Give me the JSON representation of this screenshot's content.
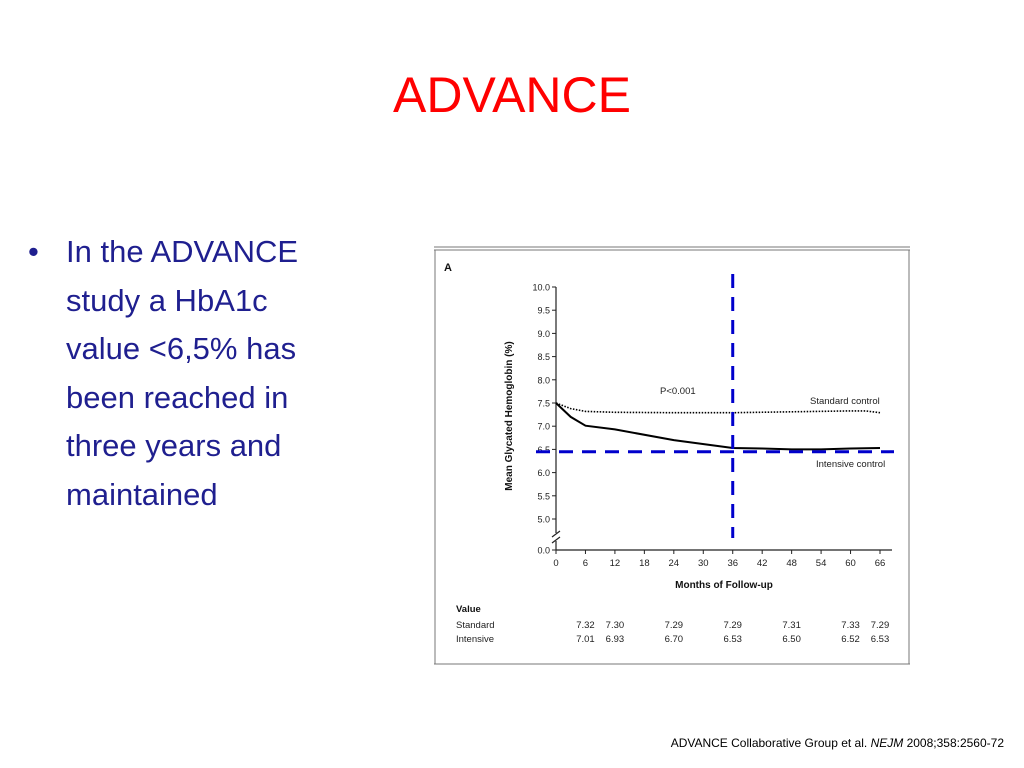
{
  "slide": {
    "title": "ADVANCE",
    "bullet_marker": "•",
    "bullet_text": "In the ADVANCE\nstudy a HbA1c\nvalue <6,5% has\nbeen reached in\nthree years and\nmaintained",
    "citation": {
      "authors": "ADVANCE Collaborative Group  et al. ",
      "journal": "NEJM",
      "ref": " 2008;358:2560-72"
    }
  },
  "chart_data": {
    "type": "line",
    "panel_label": "A",
    "xlabel": "Months of Follow-up",
    "ylabel": "Mean Glycated Hemoglobin (%)",
    "x_ticks": [
      0,
      6,
      12,
      18,
      24,
      30,
      36,
      42,
      48,
      54,
      60,
      66
    ],
    "x_tick_labels": [
      "0",
      "6",
      "12",
      "18",
      "24",
      "30",
      "36",
      "42",
      "48",
      "54",
      "60",
      "66"
    ],
    "y_ticks": [
      5.0,
      5.5,
      6.0,
      6.5,
      7.0,
      7.5,
      8.0,
      8.5,
      9.0,
      9.5,
      10.0
    ],
    "y_tick_labels": [
      "5.0",
      "5.5",
      "6.0",
      "6.5",
      "7.0",
      "7.5",
      "8.0",
      "8.5",
      "9.0",
      "9.5",
      "10.0"
    ],
    "y_zero_label": "0.0",
    "xlim": [
      0,
      66
    ],
    "ylim": [
      4.5,
      10.0
    ],
    "axis_break": true,
    "annotation": "P<0.001",
    "series": [
      {
        "name": "Standard control",
        "style": "dotted",
        "color": "#000000",
        "points": [
          [
            0,
            7.5
          ],
          [
            3,
            7.38
          ],
          [
            6,
            7.32
          ],
          [
            12,
            7.3
          ],
          [
            24,
            7.29
          ],
          [
            36,
            7.29
          ],
          [
            48,
            7.31
          ],
          [
            60,
            7.33
          ],
          [
            63,
            7.33
          ],
          [
            66,
            7.29
          ]
        ]
      },
      {
        "name": "Intensive control",
        "style": "solid",
        "color": "#000000",
        "points": [
          [
            0,
            7.5
          ],
          [
            3,
            7.2
          ],
          [
            6,
            7.01
          ],
          [
            12,
            6.93
          ],
          [
            24,
            6.7
          ],
          [
            36,
            6.53
          ],
          [
            42,
            6.52
          ],
          [
            48,
            6.5
          ],
          [
            54,
            6.5
          ],
          [
            60,
            6.52
          ],
          [
            66,
            6.53
          ]
        ]
      }
    ],
    "reference_lines": [
      {
        "orientation": "vertical",
        "value": 36,
        "color": "#0000cc",
        "style": "dashed"
      },
      {
        "orientation": "horizontal",
        "value": 6.45,
        "color": "#0000cc",
        "style": "dashed"
      }
    ],
    "value_table": {
      "header": "Value",
      "columns_x": [
        6,
        12,
        24,
        36,
        48,
        60,
        66
      ],
      "rows": [
        {
          "label": "Standard",
          "values": [
            "7.32",
            "7.30",
            "7.29",
            "7.29",
            "7.31",
            "7.33",
            "7.29"
          ]
        },
        {
          "label": "Intensive",
          "values": [
            "7.01",
            "6.93",
            "6.70",
            "6.53",
            "6.50",
            "6.52",
            "6.53"
          ]
        }
      ]
    }
  }
}
